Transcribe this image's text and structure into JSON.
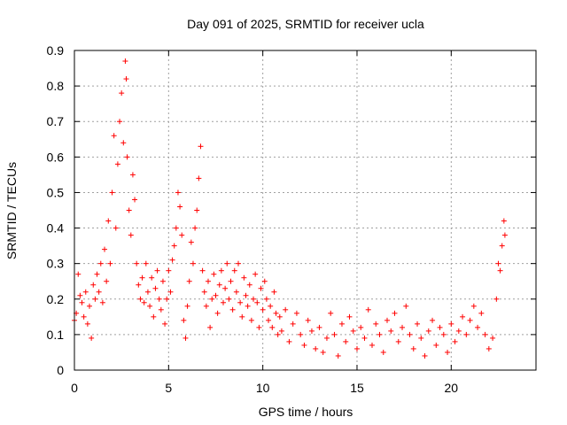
{
  "chart_data": {
    "type": "scatter",
    "title": "Day 091 of 2025, SRMTID for receiver ucla",
    "xlabel": "GPS time / hours",
    "ylabel": "SRMTID / TECUs",
    "xlim": [
      0,
      24.5
    ],
    "ylim": [
      0,
      0.9
    ],
    "xticks": [
      0,
      5,
      10,
      15,
      20
    ],
    "xtick_labels": [
      "0",
      "5",
      "10",
      "15",
      "20"
    ],
    "yticks": [
      0,
      0.1,
      0.2,
      0.3,
      0.4,
      0.5,
      0.6,
      0.7,
      0.8,
      0.9
    ],
    "ytick_labels": [
      "0",
      "0.1",
      "0.2",
      "0.3",
      "0.4",
      "0.5",
      "0.6",
      "0.7",
      "0.8",
      "0.9"
    ],
    "grid": true,
    "marker": "+",
    "color": "#ff0000",
    "series": [
      {
        "name": "SRMTID",
        "points": [
          [
            0.0,
            0.14
          ],
          [
            0.1,
            0.16
          ],
          [
            0.2,
            0.27
          ],
          [
            0.3,
            0.21
          ],
          [
            0.4,
            0.19
          ],
          [
            0.5,
            0.15
          ],
          [
            0.6,
            0.22
          ],
          [
            0.7,
            0.13
          ],
          [
            0.8,
            0.18
          ],
          [
            0.9,
            0.09
          ],
          [
            1.0,
            0.24
          ],
          [
            1.1,
            0.2
          ],
          [
            1.2,
            0.27
          ],
          [
            1.3,
            0.22
          ],
          [
            1.4,
            0.3
          ],
          [
            1.5,
            0.19
          ],
          [
            1.6,
            0.34
          ],
          [
            1.7,
            0.25
          ],
          [
            1.8,
            0.42
          ],
          [
            1.9,
            0.3
          ],
          [
            2.0,
            0.5
          ],
          [
            2.1,
            0.66
          ],
          [
            2.2,
            0.4
          ],
          [
            2.3,
            0.58
          ],
          [
            2.4,
            0.7
          ],
          [
            2.5,
            0.78
          ],
          [
            2.6,
            0.64
          ],
          [
            2.7,
            0.87
          ],
          [
            2.75,
            0.82
          ],
          [
            2.8,
            0.6
          ],
          [
            2.9,
            0.45
          ],
          [
            3.0,
            0.38
          ],
          [
            3.1,
            0.55
          ],
          [
            3.2,
            0.48
          ],
          [
            3.3,
            0.3
          ],
          [
            3.4,
            0.24
          ],
          [
            3.5,
            0.2
          ],
          [
            3.6,
            0.26
          ],
          [
            3.7,
            0.19
          ],
          [
            3.8,
            0.3
          ],
          [
            3.9,
            0.22
          ],
          [
            4.0,
            0.18
          ],
          [
            4.1,
            0.26
          ],
          [
            4.2,
            0.15
          ],
          [
            4.3,
            0.23
          ],
          [
            4.4,
            0.28
          ],
          [
            4.5,
            0.2
          ],
          [
            4.6,
            0.17
          ],
          [
            4.7,
            0.25
          ],
          [
            4.8,
            0.13
          ],
          [
            4.9,
            0.2
          ],
          [
            5.0,
            0.28
          ],
          [
            5.1,
            0.22
          ],
          [
            5.2,
            0.31
          ],
          [
            5.3,
            0.35
          ],
          [
            5.4,
            0.4
          ],
          [
            5.5,
            0.5
          ],
          [
            5.6,
            0.46
          ],
          [
            5.7,
            0.38
          ],
          [
            5.8,
            0.14
          ],
          [
            5.9,
            0.09
          ],
          [
            6.0,
            0.18
          ],
          [
            6.1,
            0.25
          ],
          [
            6.2,
            0.36
          ],
          [
            6.3,
            0.3
          ],
          [
            6.4,
            0.4
          ],
          [
            6.5,
            0.45
          ],
          [
            6.6,
            0.54
          ],
          [
            6.7,
            0.63
          ],
          [
            6.8,
            0.28
          ],
          [
            6.9,
            0.22
          ],
          [
            7.0,
            0.18
          ],
          [
            7.1,
            0.25
          ],
          [
            7.2,
            0.12
          ],
          [
            7.3,
            0.2
          ],
          [
            7.4,
            0.27
          ],
          [
            7.5,
            0.21
          ],
          [
            7.6,
            0.16
          ],
          [
            7.7,
            0.24
          ],
          [
            7.8,
            0.28
          ],
          [
            7.9,
            0.19
          ],
          [
            8.0,
            0.23
          ],
          [
            8.1,
            0.3
          ],
          [
            8.2,
            0.2
          ],
          [
            8.3,
            0.25
          ],
          [
            8.4,
            0.17
          ],
          [
            8.5,
            0.28
          ],
          [
            8.6,
            0.22
          ],
          [
            8.7,
            0.3
          ],
          [
            8.8,
            0.19
          ],
          [
            8.9,
            0.15
          ],
          [
            9.0,
            0.26
          ],
          [
            9.1,
            0.21
          ],
          [
            9.2,
            0.18
          ],
          [
            9.3,
            0.24
          ],
          [
            9.4,
            0.14
          ],
          [
            9.5,
            0.2
          ],
          [
            9.6,
            0.27
          ],
          [
            9.7,
            0.19
          ],
          [
            9.8,
            0.12
          ],
          [
            9.9,
            0.23
          ],
          [
            10.0,
            0.17
          ],
          [
            10.1,
            0.25
          ],
          [
            10.2,
            0.2
          ],
          [
            10.3,
            0.14
          ],
          [
            10.4,
            0.18
          ],
          [
            10.5,
            0.12
          ],
          [
            10.6,
            0.22
          ],
          [
            10.7,
            0.16
          ],
          [
            10.8,
            0.1
          ],
          [
            10.9,
            0.15
          ],
          [
            11.0,
            0.11
          ],
          [
            11.2,
            0.17
          ],
          [
            11.4,
            0.08
          ],
          [
            11.6,
            0.13
          ],
          [
            11.8,
            0.16
          ],
          [
            12.0,
            0.1
          ],
          [
            12.2,
            0.07
          ],
          [
            12.4,
            0.14
          ],
          [
            12.6,
            0.11
          ],
          [
            12.8,
            0.06
          ],
          [
            13.0,
            0.12
          ],
          [
            13.2,
            0.05
          ],
          [
            13.4,
            0.09
          ],
          [
            13.6,
            0.16
          ],
          [
            13.8,
            0.1
          ],
          [
            14.0,
            0.04
          ],
          [
            14.2,
            0.13
          ],
          [
            14.4,
            0.08
          ],
          [
            14.6,
            0.15
          ],
          [
            14.8,
            0.11
          ],
          [
            15.0,
            0.06
          ],
          [
            15.2,
            0.12
          ],
          [
            15.4,
            0.09
          ],
          [
            15.6,
            0.17
          ],
          [
            15.8,
            0.07
          ],
          [
            16.0,
            0.13
          ],
          [
            16.2,
            0.1
          ],
          [
            16.4,
            0.05
          ],
          [
            16.6,
            0.14
          ],
          [
            16.8,
            0.11
          ],
          [
            17.0,
            0.16
          ],
          [
            17.2,
            0.08
          ],
          [
            17.4,
            0.12
          ],
          [
            17.6,
            0.18
          ],
          [
            17.8,
            0.1
          ],
          [
            18.0,
            0.06
          ],
          [
            18.2,
            0.13
          ],
          [
            18.4,
            0.09
          ],
          [
            18.6,
            0.04
          ],
          [
            18.8,
            0.11
          ],
          [
            19.0,
            0.14
          ],
          [
            19.2,
            0.07
          ],
          [
            19.4,
            0.12
          ],
          [
            19.6,
            0.1
          ],
          [
            19.8,
            0.05
          ],
          [
            20.0,
            0.13
          ],
          [
            20.2,
            0.08
          ],
          [
            20.4,
            0.11
          ],
          [
            20.6,
            0.15
          ],
          [
            20.8,
            0.1
          ],
          [
            21.0,
            0.14
          ],
          [
            21.2,
            0.18
          ],
          [
            21.4,
            0.12
          ],
          [
            21.6,
            0.16
          ],
          [
            21.8,
            0.1
          ],
          [
            22.0,
            0.06
          ],
          [
            22.2,
            0.09
          ],
          [
            22.4,
            0.2
          ],
          [
            22.5,
            0.3
          ],
          [
            22.6,
            0.28
          ],
          [
            22.7,
            0.35
          ],
          [
            22.8,
            0.42
          ],
          [
            22.85,
            0.38
          ]
        ]
      }
    ]
  }
}
